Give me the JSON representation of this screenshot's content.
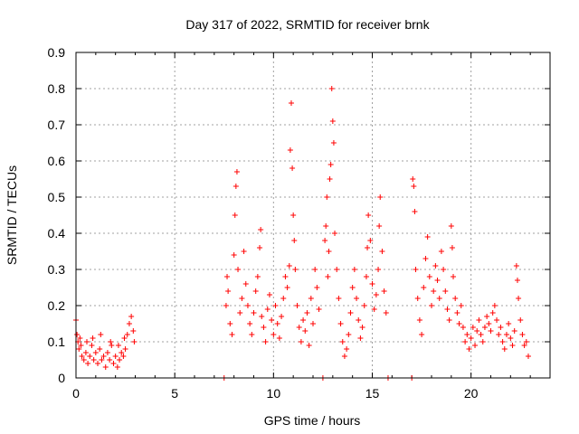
{
  "chart_data": {
    "type": "scatter",
    "title": "Day 317 of 2022, SRMTID for receiver brnk",
    "xlabel": "GPS time / hours",
    "ylabel": "SRMTID / TECUs",
    "xlim": [
      0,
      24
    ],
    "ylim": [
      0,
      0.9
    ],
    "xticks": [
      0,
      5,
      10,
      15,
      20
    ],
    "yticks": [
      0,
      0.1,
      0.2,
      0.3,
      0.4,
      0.5,
      0.6,
      0.7,
      0.8,
      0.9
    ],
    "grid": true,
    "marker": "+",
    "marker_color": "#ff0000",
    "series": [
      {
        "name": "SRMTID",
        "points": [
          [
            0.0,
            0.16
          ],
          [
            0.05,
            0.12
          ],
          [
            0.1,
            0.1
          ],
          [
            0.15,
            0.08
          ],
          [
            0.2,
            0.11
          ],
          [
            0.3,
            0.06
          ],
          [
            0.4,
            0.05
          ],
          [
            0.5,
            0.07
          ],
          [
            0.6,
            0.04
          ],
          [
            0.7,
            0.06
          ],
          [
            0.8,
            0.09
          ],
          [
            0.9,
            0.05
          ],
          [
            1.0,
            0.07
          ],
          [
            1.1,
            0.04
          ],
          [
            1.2,
            0.08
          ],
          [
            1.3,
            0.05
          ],
          [
            1.4,
            0.06
          ],
          [
            1.5,
            0.03
          ],
          [
            1.6,
            0.07
          ],
          [
            1.7,
            0.05
          ],
          [
            1.8,
            0.09
          ],
          [
            1.9,
            0.04
          ],
          [
            2.0,
            0.06
          ],
          [
            2.1,
            0.03
          ],
          [
            2.2,
            0.05
          ],
          [
            2.3,
            0.07
          ],
          [
            2.4,
            0.06
          ],
          [
            2.5,
            0.08
          ],
          [
            2.6,
            0.12
          ],
          [
            2.7,
            0.15
          ],
          [
            2.8,
            0.17
          ],
          [
            2.9,
            0.13
          ],
          [
            0.25,
            0.09
          ],
          [
            0.55,
            0.1
          ],
          [
            0.85,
            0.11
          ],
          [
            1.25,
            0.12
          ],
          [
            1.75,
            0.1
          ],
          [
            2.15,
            0.09
          ],
          [
            2.45,
            0.11
          ],
          [
            2.95,
            0.1
          ],
          [
            7.5,
            0.0
          ],
          [
            7.6,
            0.2
          ],
          [
            7.65,
            0.28
          ],
          [
            7.7,
            0.24
          ],
          [
            7.8,
            0.15
          ],
          [
            7.9,
            0.12
          ],
          [
            8.0,
            0.34
          ],
          [
            8.05,
            0.45
          ],
          [
            8.1,
            0.53
          ],
          [
            8.15,
            0.57
          ],
          [
            8.2,
            0.3
          ],
          [
            8.3,
            0.18
          ],
          [
            8.4,
            0.22
          ],
          [
            8.5,
            0.35
          ],
          [
            8.6,
            0.26
          ],
          [
            8.7,
            0.2
          ],
          [
            8.8,
            0.15
          ],
          [
            8.9,
            0.12
          ],
          [
            9.0,
            0.18
          ],
          [
            9.1,
            0.24
          ],
          [
            9.2,
            0.28
          ],
          [
            9.3,
            0.36
          ],
          [
            9.35,
            0.41
          ],
          [
            9.4,
            0.17
          ],
          [
            9.5,
            0.14
          ],
          [
            9.6,
            0.1
          ],
          [
            9.7,
            0.19
          ],
          [
            9.8,
            0.23
          ],
          [
            9.9,
            0.16
          ],
          [
            10.0,
            0.12
          ],
          [
            10.1,
            0.2
          ],
          [
            10.2,
            0.15
          ],
          [
            10.3,
            0.11
          ],
          [
            10.4,
            0.17
          ],
          [
            10.5,
            0.22
          ],
          [
            10.6,
            0.28
          ],
          [
            10.7,
            0.25
          ],
          [
            10.8,
            0.31
          ],
          [
            10.85,
            0.63
          ],
          [
            10.9,
            0.76
          ],
          [
            10.95,
            0.58
          ],
          [
            11.0,
            0.45
          ],
          [
            11.05,
            0.38
          ],
          [
            11.1,
            0.3
          ],
          [
            11.2,
            0.2
          ],
          [
            11.3,
            0.14
          ],
          [
            11.4,
            0.1
          ],
          [
            11.5,
            0.16
          ],
          [
            11.6,
            0.13
          ],
          [
            11.7,
            0.18
          ],
          [
            11.8,
            0.09
          ],
          [
            11.9,
            0.22
          ],
          [
            12.0,
            0.15
          ],
          [
            12.1,
            0.3
          ],
          [
            12.2,
            0.25
          ],
          [
            12.3,
            0.19
          ],
          [
            12.5,
            0.0
          ],
          [
            12.6,
            0.38
          ],
          [
            12.65,
            0.42
          ],
          [
            12.7,
            0.5
          ],
          [
            12.75,
            0.28
          ],
          [
            12.8,
            0.35
          ],
          [
            12.85,
            0.55
          ],
          [
            12.9,
            0.59
          ],
          [
            12.95,
            0.8
          ],
          [
            13.0,
            0.71
          ],
          [
            13.05,
            0.65
          ],
          [
            13.1,
            0.4
          ],
          [
            13.2,
            0.3
          ],
          [
            13.3,
            0.22
          ],
          [
            13.4,
            0.15
          ],
          [
            13.5,
            0.1
          ],
          [
            13.6,
            0.06
          ],
          [
            13.7,
            0.08
          ],
          [
            13.8,
            0.12
          ],
          [
            13.9,
            0.18
          ],
          [
            14.0,
            0.25
          ],
          [
            14.1,
            0.3
          ],
          [
            14.2,
            0.22
          ],
          [
            14.3,
            0.16
          ],
          [
            14.4,
            0.11
          ],
          [
            14.5,
            0.14
          ],
          [
            14.6,
            0.2
          ],
          [
            14.7,
            0.28
          ],
          [
            14.75,
            0.36
          ],
          [
            14.8,
            0.45
          ],
          [
            14.9,
            0.38
          ],
          [
            15.0,
            0.26
          ],
          [
            15.1,
            0.19
          ],
          [
            15.2,
            0.23
          ],
          [
            15.3,
            0.3
          ],
          [
            15.35,
            0.42
          ],
          [
            15.4,
            0.5
          ],
          [
            15.5,
            0.35
          ],
          [
            15.6,
            0.24
          ],
          [
            15.7,
            0.18
          ],
          [
            15.8,
            0.0
          ],
          [
            17.0,
            0.0
          ],
          [
            17.05,
            0.55
          ],
          [
            17.1,
            0.53
          ],
          [
            17.15,
            0.46
          ],
          [
            17.2,
            0.3
          ],
          [
            17.3,
            0.22
          ],
          [
            17.4,
            0.16
          ],
          [
            17.5,
            0.12
          ],
          [
            17.6,
            0.25
          ],
          [
            17.7,
            0.33
          ],
          [
            17.8,
            0.39
          ],
          [
            17.9,
            0.28
          ],
          [
            18.0,
            0.2
          ],
          [
            18.1,
            0.24
          ],
          [
            18.2,
            0.31
          ],
          [
            18.3,
            0.27
          ],
          [
            18.4,
            0.22
          ],
          [
            18.5,
            0.35
          ],
          [
            18.6,
            0.3
          ],
          [
            18.7,
            0.24
          ],
          [
            18.8,
            0.19
          ],
          [
            18.9,
            0.16
          ],
          [
            19.0,
            0.42
          ],
          [
            19.05,
            0.36
          ],
          [
            19.1,
            0.28
          ],
          [
            19.2,
            0.22
          ],
          [
            19.3,
            0.18
          ],
          [
            19.4,
            0.15
          ],
          [
            19.5,
            0.2
          ],
          [
            19.6,
            0.14
          ],
          [
            19.7,
            0.1
          ],
          [
            19.8,
            0.12
          ],
          [
            19.9,
            0.08
          ],
          [
            20.0,
            0.11
          ],
          [
            20.1,
            0.14
          ],
          [
            20.2,
            0.09
          ],
          [
            20.3,
            0.13
          ],
          [
            20.4,
            0.16
          ],
          [
            20.5,
            0.12
          ],
          [
            20.6,
            0.1
          ],
          [
            20.7,
            0.14
          ],
          [
            20.8,
            0.17
          ],
          [
            20.9,
            0.15
          ],
          [
            21.0,
            0.13
          ],
          [
            21.1,
            0.18
          ],
          [
            21.2,
            0.2
          ],
          [
            21.3,
            0.16
          ],
          [
            21.4,
            0.12
          ],
          [
            21.5,
            0.14
          ],
          [
            21.6,
            0.1
          ],
          [
            21.7,
            0.08
          ],
          [
            21.8,
            0.12
          ],
          [
            21.9,
            0.15
          ],
          [
            22.0,
            0.11
          ],
          [
            22.1,
            0.09
          ],
          [
            22.2,
            0.13
          ],
          [
            22.3,
            0.31
          ],
          [
            22.35,
            0.27
          ],
          [
            22.4,
            0.22
          ],
          [
            22.5,
            0.16
          ],
          [
            22.6,
            0.12
          ],
          [
            22.7,
            0.09
          ],
          [
            22.8,
            0.1
          ],
          [
            22.9,
            0.06
          ]
        ]
      }
    ]
  }
}
